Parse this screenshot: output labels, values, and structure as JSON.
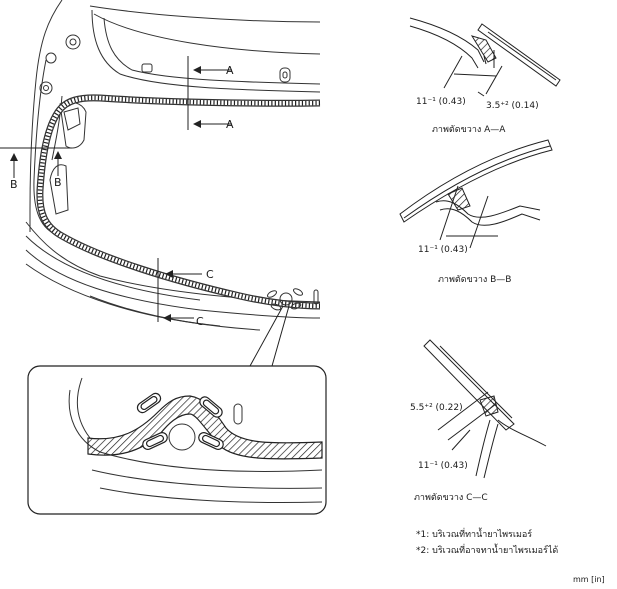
{
  "units": "mm [in]",
  "main_view": {
    "section_marks": {
      "a_top": "A",
      "a_bottom": "A",
      "b_left": "B",
      "b_right": "B",
      "c_top": "C",
      "c_bottom": "C"
    }
  },
  "section_aa": {
    "dim_1": "11⁻¹ (0.43)",
    "dim_2": "3.5⁺² (0.14)",
    "caption": "ภาพตัดขวาง A—A"
  },
  "section_bb": {
    "dim_1": "11⁻¹ (0.43)",
    "caption": "ภาพตัดขวาง B—B"
  },
  "section_cc": {
    "dim_1": "5.5⁺² (0.22)",
    "dim_2": "11⁻¹ (0.43)",
    "caption": "ภาพตัดขวาง C—C"
  },
  "notes": {
    "note_1": "*1: บริเวณที่ทาน้ำยาไพรเมอร์",
    "note_2": "*2: บริเวณที่อาจทาน้ำยาไพรเมอร์ได้"
  }
}
